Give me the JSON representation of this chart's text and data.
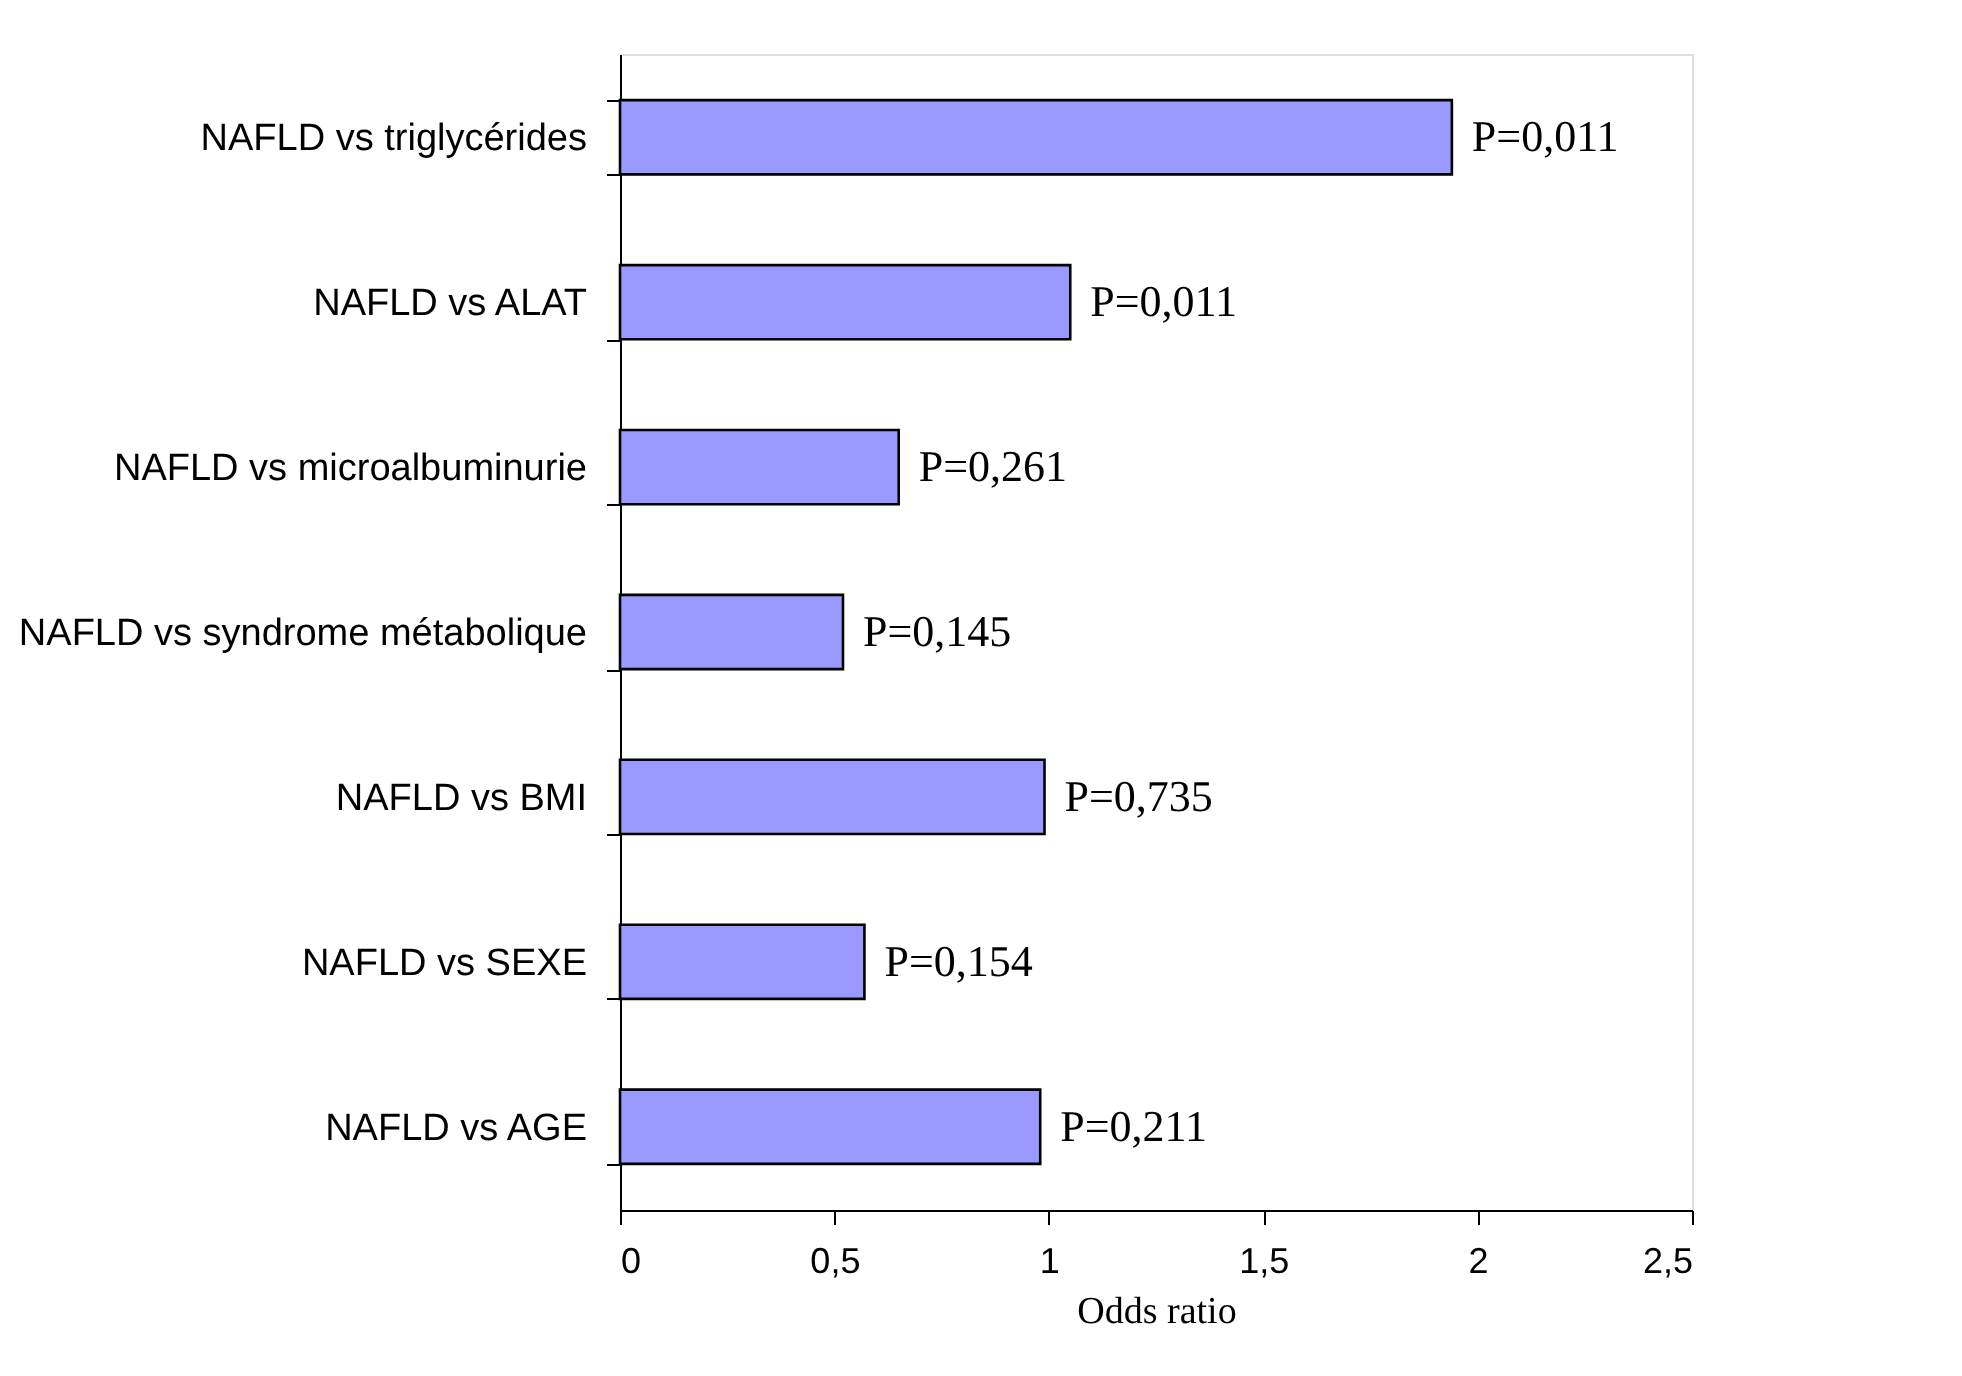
{
  "chart_data": {
    "type": "bar",
    "orientation": "horizontal",
    "categories": [
      "NAFLD vs triglycérides",
      "NAFLD vs ALAT",
      "NAFLD vs microalbuminurie",
      "NAFLD vs syndrome métabolique",
      "NAFLD vs BMI",
      "NAFLD vs SEXE",
      "NAFLD vs AGE"
    ],
    "values": [
      1.94,
      1.05,
      0.65,
      0.52,
      0.99,
      0.57,
      0.98
    ],
    "annotations": [
      {
        "text": "P=0,011",
        "x": 1.94,
        "y": "NAFLD vs triglycérides"
      },
      {
        "text": "P=0,011",
        "x": 1.05,
        "y": "NAFLD vs ALAT"
      },
      {
        "text": "P=0,261",
        "x": 0.65,
        "y": "NAFLD vs microalbuminurie"
      },
      {
        "text": "P=0,145",
        "x": 0.52,
        "y": "NAFLD vs syndrome métabolique"
      },
      {
        "text": "P=0,735",
        "x": 0.99,
        "y": "NAFLD vs BMI"
      },
      {
        "text": "P=0,154",
        "x": 0.57,
        "y": "NAFLD vs SEXE"
      },
      {
        "text": "P=0,211",
        "x": 0.98,
        "y": "NAFLD vs AGE"
      }
    ],
    "color": "#9999ff",
    "xlabel": "Odds ratio",
    "xlim": [
      0,
      2.5
    ],
    "xticks": [
      {
        "value": 0,
        "label": "0"
      },
      {
        "value": 0.5,
        "label": "0,5"
      },
      {
        "value": 1,
        "label": "1"
      },
      {
        "value": 1.5,
        "label": "1,5"
      },
      {
        "value": 2,
        "label": "2"
      },
      {
        "value": 2.5,
        "label": "2,5"
      }
    ],
    "grid": false
  }
}
